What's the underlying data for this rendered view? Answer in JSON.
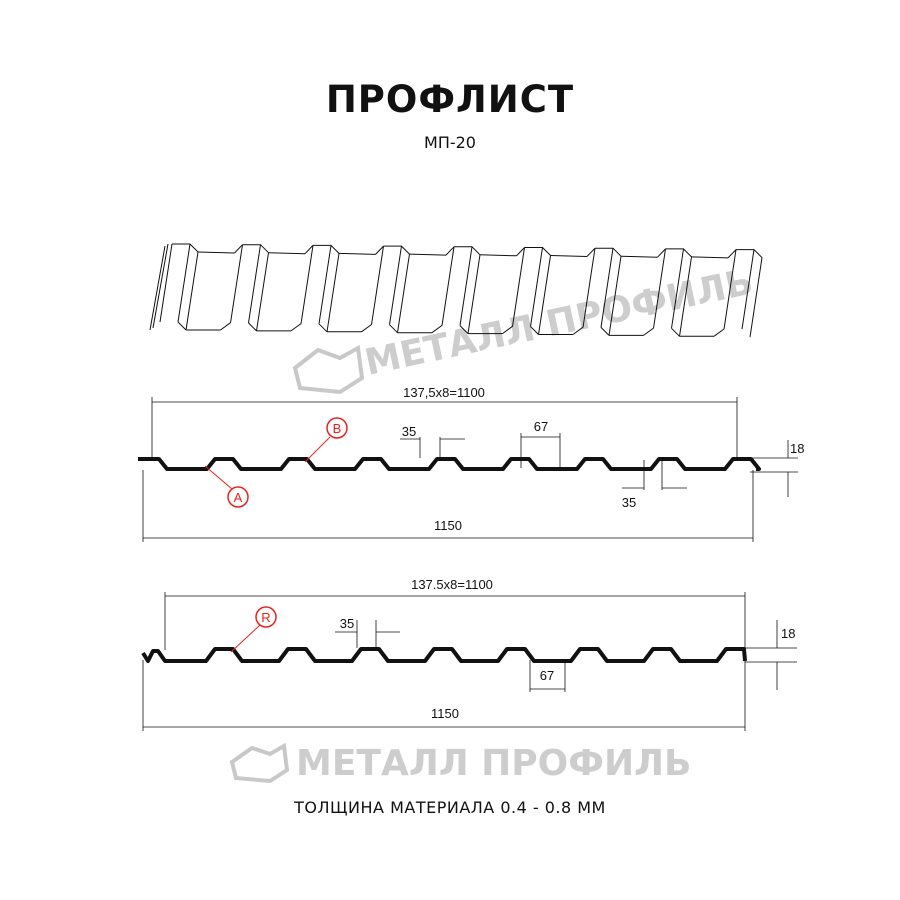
{
  "title": "ПРОФЛИСТ",
  "subtitle": "МП-20",
  "footer": "ТОЛЩИНА МАТЕРИАЛА 0.4 - 0.8 ММ",
  "watermark": "МЕТАЛЛ ПРОФИЛЬ",
  "profile_a": {
    "pitch_label": "137,5x8=1100",
    "width_label": "1150",
    "crest_label": "35",
    "crest_label_2": "35",
    "trough_label": "67",
    "height_label": "18",
    "markers": [
      "B",
      "A"
    ]
  },
  "profile_r": {
    "pitch_label": "137.5x8=1100",
    "width_label": "1150",
    "crest_label": "35",
    "trough_label": "67",
    "height_label": "18",
    "markers": [
      "R"
    ]
  },
  "colors": {
    "line": "#111111",
    "marker": "#e8231f",
    "watermark": "#bdbdbd"
  }
}
